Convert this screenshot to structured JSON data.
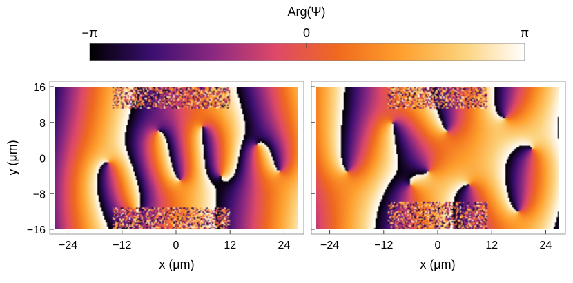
{
  "chart_data": {
    "type": "heatmap",
    "colorbar": {
      "title": "Arg(Ψ)",
      "min_label": "−π",
      "mid_label": "0",
      "max_label": "π",
      "range": [
        -3.14159,
        3.14159
      ],
      "colormap": [
        "#000000",
        "#3b0f70",
        "#8c2981",
        "#de4968",
        "#f06a1e",
        "#fe9f2d",
        "#fcd17a",
        "#ffffff"
      ]
    },
    "panels": [
      {
        "name": "panel-left",
        "xlabel": "x (μm)",
        "ylabel": "y (μm)",
        "xlim": [
          -29,
          29
        ],
        "ylim": [
          -17,
          17
        ],
        "xticks": [
          -24,
          -12,
          0,
          12,
          24
        ],
        "xtick_labels": [
          "−24",
          "−12",
          "0",
          "12",
          "24"
        ],
        "yticks": [
          16,
          8,
          0,
          -8,
          -16
        ],
        "ytick_labels": [
          "16",
          "8",
          "0",
          "−8",
          "−16"
        ],
        "vortices": [
          {
            "x": -15,
            "y": -1,
            "s": 1
          },
          {
            "x": -9,
            "y": -12,
            "s": -1
          },
          {
            "x": -4,
            "y": 6,
            "s": 1
          },
          {
            "x": 1,
            "y": -5,
            "s": -1
          },
          {
            "x": 6,
            "y": 7,
            "s": 1
          },
          {
            "x": 10,
            "y": -4,
            "s": -1
          },
          {
            "x": 18,
            "y": 3,
            "s": 1
          },
          {
            "x": 23,
            "y": -3,
            "s": -1
          }
        ],
        "noise_bands": [
          {
            "x": [
              -14,
              12
            ],
            "y": [
              11,
              16
            ]
          },
          {
            "x": [
              -14,
              12
            ],
            "y": [
              -16,
              -11
            ]
          }
        ]
      },
      {
        "name": "panel-right",
        "xlabel": "x (μm)",
        "xlim": [
          -29,
          29
        ],
        "ylim": [
          -17,
          17
        ],
        "xticks": [
          -24,
          -12,
          0,
          12,
          24
        ],
        "xtick_labels": [
          "−24",
          "−12",
          "0",
          "12",
          "24"
        ],
        "yticks": [
          16,
          8,
          0,
          -8,
          -16
        ],
        "vortices": [
          {
            "x": -20,
            "y": -3,
            "s": -1
          },
          {
            "x": -10,
            "y": 8,
            "s": 1
          },
          {
            "x": -6,
            "y": -6,
            "s": 1
          },
          {
            "x": -2,
            "y": -3,
            "s": -1
          },
          {
            "x": 2,
            "y": 6,
            "s": -1
          },
          {
            "x": 7,
            "y": -6,
            "s": 1
          },
          {
            "x": 15,
            "y": 9,
            "s": -1
          },
          {
            "x": 21,
            "y": 2,
            "s": 1
          },
          {
            "x": 18,
            "y": -12,
            "s": -1
          }
        ],
        "noise_bands": [
          {
            "x": [
              -11,
              11
            ],
            "y": [
              11,
              16
            ]
          },
          {
            "x": [
              -11,
              11
            ],
            "y": [
              -16,
              -10
            ]
          }
        ]
      }
    ]
  }
}
